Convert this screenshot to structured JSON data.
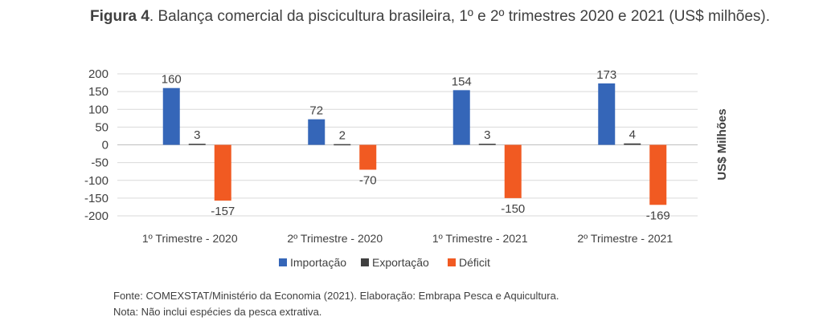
{
  "figure": {
    "label": "Figura 4",
    "caption": ". Balança comercial da piscicultura brasileira, 1º e 2º trimestres 2020 e 2021 (US$ milhões)."
  },
  "chart_data": {
    "type": "bar",
    "categories": [
      "1º Trimestre - 2020",
      "2º Trimestre - 2020",
      "1º Trimestre - 2021",
      "2º Trimestre - 2021"
    ],
    "series": [
      {
        "name": "Importação",
        "values": [
          160,
          72,
          154,
          173
        ],
        "color": "#3566b8"
      },
      {
        "name": "Exportação",
        "values": [
          3,
          2,
          3,
          4
        ],
        "color": "#404040"
      },
      {
        "name": "Déficit",
        "values": [
          -157,
          -70,
          -150,
          -169
        ],
        "color": "#f15a22"
      }
    ],
    "ylabel": "US$ Milhões",
    "ylim": [
      -200,
      200
    ],
    "yticks": [
      200,
      150,
      100,
      50,
      0,
      -50,
      -100,
      -150,
      -200
    ],
    "grid": true,
    "legend": "bottom"
  },
  "notes": {
    "source": "Fonte: COMEXSTAT/Ministério da Economia (2021). Elaboração: Embrapa Pesca e Aquicultura.",
    "note": "Nota: Não inclui espécies da pesca extrativa."
  }
}
